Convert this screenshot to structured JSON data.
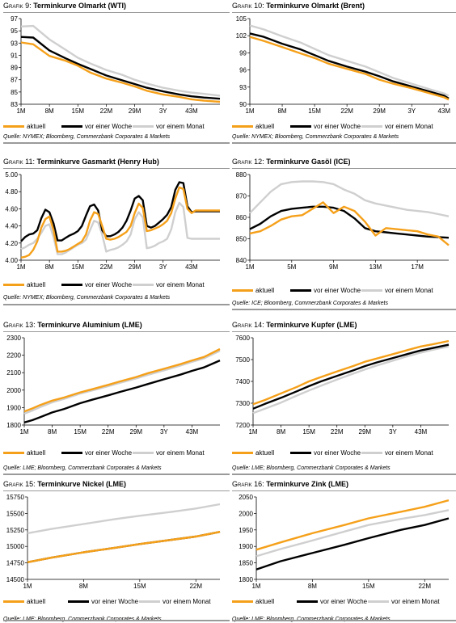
{
  "colors": {
    "aktuell": "#f5a01a",
    "woche": "#000000",
    "monat": "#cfcfcf",
    "dashed": "#f5a01a"
  },
  "legend": {
    "aktuell": "aktuell",
    "woche": "vor einer Woche",
    "monat": "vor einem Monat"
  },
  "panels": [
    {
      "pre": "Grafik 9: ",
      "title": "Terminkurve Olmarkt (WTI)",
      "source": "Quelle: NYMEX; Bloomberg, Commerzbank Corporates & Markets"
    },
    {
      "pre": "Grafik 10: ",
      "title": "Terminkurve Olmarkt (Brent)",
      "source": "Quelle: NYMEX; Bloomberg, Commerzbank Corporates & Markets"
    },
    {
      "pre": "Grafik 11: ",
      "title": "Terminkurve Gasmarkt (Henry Hub)",
      "source": "Quelle: NYMEX; Bloomberg, Commerzbank Corporates & Markets"
    },
    {
      "pre": "Grafik 12: ",
      "title": "Terminkurve Gasöl (ICE)",
      "source": "Quelle: ICE; Bloomberg, Commerzbank Corporates & Markets"
    },
    {
      "pre": "Grafik 13:  ",
      "title": "Terminkurve Aluminium (LME)",
      "source": "Quelle: LME; Bloomberg, Commerzbank Corporates & Markets"
    },
    {
      "pre": "Grafik 14: ",
      "title": "Terminkurve Kupfer (LME)",
      "source": "Quelle: LME; Bloomberg, Commerzbank Corporates & Markets"
    },
    {
      "pre": "Grafik 15: ",
      "title": "Terminkurve Nickel (LME)",
      "source": "Quelle: LME; Bloomberg, Commerzbank Corporates & Markets"
    },
    {
      "pre": "Grafik 16: ",
      "title": "Terminkurve Zink (LME)",
      "source": "Quelle: LME; Bloomberg, Commerzbank Corporates & Markets"
    }
  ],
  "chart_data": [
    {
      "type": "line",
      "title": "Terminkurve Olmarkt (WTI)",
      "x": [
        1,
        4,
        8,
        12,
        15,
        18,
        22,
        26,
        29,
        32,
        36,
        40,
        43,
        46,
        50
      ],
      "xticks": [
        {
          "at": 1,
          "label": "1M"
        },
        {
          "at": 8,
          "label": "8M"
        },
        {
          "at": 15,
          "label": "15M"
        },
        {
          "at": 22,
          "label": "22M"
        },
        {
          "at": 29,
          "label": "29M"
        },
        {
          "at": 36,
          "label": "3Y"
        },
        {
          "at": 43,
          "label": "43M"
        }
      ],
      "ylim": [
        83,
        97
      ],
      "yticks": [
        83,
        85,
        87,
        89,
        91,
        93,
        95,
        97
      ],
      "xrange": [
        1,
        50
      ],
      "series": [
        {
          "name": "aktuell",
          "values": [
            93.1,
            92.8,
            90.9,
            90.1,
            89.3,
            88.2,
            87.2,
            86.5,
            85.9,
            85.2,
            84.6,
            84.2,
            83.8,
            83.6,
            83.4
          ]
        },
        {
          "name": "vor einer Woche",
          "values": [
            94.0,
            93.9,
            91.8,
            90.5,
            89.6,
            88.8,
            87.7,
            86.9,
            86.3,
            85.7,
            85.1,
            84.6,
            84.3,
            84.1,
            83.9
          ]
        },
        {
          "name": "vor einem Monat",
          "values": [
            95.7,
            95.8,
            93.6,
            91.9,
            90.6,
            89.7,
            88.6,
            87.8,
            87.0,
            86.4,
            85.7,
            85.2,
            84.9,
            84.7,
            84.4
          ]
        }
      ]
    },
    {
      "type": "line",
      "title": "Terminkurve Olmarkt (Brent)",
      "x": [
        1,
        4,
        8,
        12,
        15,
        18,
        22,
        26,
        29,
        32,
        36,
        40,
        43,
        44
      ],
      "xticks": [
        {
          "at": 1,
          "label": "1M"
        },
        {
          "at": 8,
          "label": "8M"
        },
        {
          "at": 15,
          "label": "15M"
        },
        {
          "at": 22,
          "label": "22M"
        },
        {
          "at": 29,
          "label": "29M"
        },
        {
          "at": 36,
          "label": "3Y"
        },
        {
          "at": 43,
          "label": "43M"
        }
      ],
      "ylim": [
        90,
        105
      ],
      "yticks": [
        90,
        93,
        96,
        99,
        102,
        105
      ],
      "xrange": [
        1,
        44
      ],
      "series": [
        {
          "name": "aktuell",
          "values": [
            101.8,
            101.1,
            100.0,
            98.9,
            98.1,
            97.1,
            96.2,
            95.3,
            94.3,
            93.6,
            92.8,
            91.9,
            91.2,
            90.8
          ]
        },
        {
          "name": "vor einer Woche",
          "values": [
            102.4,
            101.8,
            100.6,
            99.6,
            98.6,
            97.6,
            96.6,
            95.7,
            94.9,
            94.0,
            93.1,
            92.2,
            91.5,
            91.0
          ]
        },
        {
          "name": "vor einem Monat",
          "values": [
            103.8,
            103.1,
            101.9,
            100.8,
            99.7,
            98.6,
            97.6,
            96.6,
            95.6,
            94.6,
            93.6,
            92.6,
            91.9,
            91.5
          ]
        }
      ]
    },
    {
      "type": "line",
      "title": "Terminkurve Gasmarkt (Henry Hub)",
      "x": [
        1,
        2,
        3,
        4,
        5,
        6,
        7,
        8,
        9,
        10,
        11,
        12,
        13,
        14,
        15,
        16,
        17,
        18,
        19,
        20,
        21,
        22,
        23,
        24,
        25,
        26,
        27,
        28,
        29,
        30,
        31,
        32,
        33,
        34,
        35,
        36,
        37,
        38,
        39,
        40,
        41,
        42,
        43,
        44,
        45,
        46,
        47,
        48,
        49,
        50
      ],
      "xticks": [
        {
          "at": 1,
          "label": "1M"
        },
        {
          "at": 8,
          "label": "8M"
        },
        {
          "at": 15,
          "label": "15M"
        },
        {
          "at": 22,
          "label": "22M"
        },
        {
          "at": 29,
          "label": "29M"
        },
        {
          "at": 36,
          "label": "3Y"
        },
        {
          "at": 43,
          "label": "43M"
        }
      ],
      "ylim": [
        4.0,
        5.0
      ],
      "yticks": [
        4.0,
        4.2,
        4.4,
        4.6,
        4.8,
        5.0
      ],
      "xrange": [
        1,
        50
      ],
      "ydecimals": 2,
      "series": [
        {
          "name": "aktuell",
          "values": [
            4.03,
            4.04,
            4.06,
            4.12,
            4.22,
            4.38,
            4.48,
            4.51,
            4.35,
            4.1,
            4.1,
            4.11,
            4.13,
            4.16,
            4.19,
            4.22,
            4.3,
            4.46,
            4.56,
            4.54,
            4.4,
            4.25,
            4.24,
            4.25,
            4.27,
            4.3,
            4.33,
            4.4,
            4.55,
            4.66,
            4.61,
            4.34,
            4.35,
            4.37,
            4.39,
            4.42,
            4.46,
            4.55,
            4.72,
            4.85,
            4.83,
            4.6,
            4.55,
            4.58,
            4.58,
            4.58,
            4.58,
            4.58,
            4.58,
            4.58
          ]
        },
        {
          "name": "vor einer Woche",
          "values": [
            4.22,
            4.27,
            4.3,
            4.31,
            4.35,
            4.49,
            4.59,
            4.56,
            4.43,
            4.23,
            4.23,
            4.26,
            4.29,
            4.31,
            4.34,
            4.4,
            4.52,
            4.63,
            4.65,
            4.58,
            4.35,
            4.28,
            4.28,
            4.3,
            4.33,
            4.38,
            4.46,
            4.58,
            4.72,
            4.75,
            4.7,
            4.4,
            4.38,
            4.4,
            4.44,
            4.48,
            4.53,
            4.62,
            4.82,
            4.91,
            4.9,
            4.63,
            4.56,
            4.57,
            4.57,
            4.57,
            4.57,
            4.57,
            4.57,
            4.57
          ]
        },
        {
          "name": "vor einem Monat",
          "values": [
            4.13,
            4.15,
            4.18,
            4.2,
            4.25,
            4.32,
            4.4,
            4.42,
            4.27,
            4.07,
            4.07,
            4.09,
            4.12,
            4.15,
            4.18,
            4.2,
            4.24,
            4.35,
            4.46,
            4.44,
            4.3,
            4.1,
            4.12,
            4.13,
            4.15,
            4.18,
            4.22,
            4.3,
            4.48,
            4.56,
            4.5,
            4.14,
            4.15,
            4.17,
            4.2,
            4.22,
            4.25,
            4.36,
            4.56,
            4.67,
            4.62,
            4.26,
            4.25,
            4.25,
            4.25,
            4.25,
            4.25,
            4.25,
            4.25,
            4.25
          ]
        }
      ]
    },
    {
      "type": "line",
      "title": "Terminkurve Gasöl (ICE)",
      "x": [
        1,
        2,
        3,
        4,
        5,
        6,
        7,
        8,
        9,
        10,
        11,
        12,
        13,
        14,
        15,
        16,
        17,
        18,
        19,
        20
      ],
      "xticks": [
        {
          "at": 1,
          "label": "1M"
        },
        {
          "at": 5,
          "label": "5M"
        },
        {
          "at": 9,
          "label": "9M"
        },
        {
          "at": 13,
          "label": "13M"
        },
        {
          "at": 17,
          "label": "17M"
        }
      ],
      "ylim": [
        840,
        880
      ],
      "yticks": [
        840,
        850,
        860,
        870,
        880
      ],
      "xrange": [
        1,
        20
      ],
      "series": [
        {
          "name": "aktuell",
          "values": [
            852.5,
            853.5,
            856,
            859,
            860.5,
            861,
            864,
            867,
            862,
            865,
            863,
            858,
            851.5,
            855,
            854.5,
            854,
            853.5,
            852,
            851,
            847
          ]
        },
        {
          "name": "vor einer Woche",
          "values": [
            854.5,
            857,
            860.5,
            863,
            864,
            864.5,
            865,
            865,
            864.5,
            863,
            859.5,
            855,
            853.5,
            853,
            852.5,
            852,
            851.5,
            851,
            850.8,
            850.5
          ]
        },
        {
          "name": "vor einem Monat",
          "values": [
            862,
            867,
            872,
            875.5,
            876.5,
            876.8,
            876.8,
            876.5,
            875.5,
            873,
            871,
            868,
            866.5,
            865.5,
            864.5,
            863.5,
            863,
            862.5,
            861.5,
            860.5
          ]
        }
      ]
    },
    {
      "type": "line",
      "title": "Terminkurve Aluminium (LME)",
      "x": [
        1,
        3,
        5,
        8,
        11,
        15,
        18,
        22,
        25,
        29,
        32,
        36,
        40,
        43,
        46,
        50
      ],
      "xticks": [
        {
          "at": 1,
          "label": "1M"
        },
        {
          "at": 8,
          "label": "8M"
        },
        {
          "at": 15,
          "label": "15M"
        },
        {
          "at": 22,
          "label": "22M"
        },
        {
          "at": 29,
          "label": "29M"
        },
        {
          "at": 36,
          "label": "3Y"
        },
        {
          "at": 43,
          "label": "43M"
        }
      ],
      "ylim": [
        1800,
        2300
      ],
      "yticks": [
        1800,
        1900,
        2000,
        2100,
        2200,
        2300
      ],
      "xrange": [
        1,
        50
      ],
      "series": [
        {
          "name": "aktuell",
          "values": [
            1878,
            1895,
            1915,
            1940,
            1958,
            1987,
            2005,
            2030,
            2050,
            2075,
            2097,
            2122,
            2148,
            2170,
            2190,
            2235
          ]
        },
        {
          "name": "vor einer Woche",
          "values": [
            1815,
            1828,
            1845,
            1872,
            1892,
            1925,
            1945,
            1970,
            1990,
            2015,
            2035,
            2062,
            2088,
            2110,
            2130,
            2170
          ]
        },
        {
          "name": "vor einem Monat",
          "values": [
            1865,
            1883,
            1903,
            1930,
            1950,
            1980,
            1998,
            2022,
            2042,
            2067,
            2088,
            2113,
            2140,
            2162,
            2182,
            2225
          ]
        }
      ]
    },
    {
      "type": "line",
      "title": "Terminkurve Kupfer (LME)",
      "x": [
        1,
        4,
        8,
        12,
        15,
        18,
        22,
        26,
        29,
        32,
        36,
        40,
        43,
        46,
        50
      ],
      "xticks": [
        {
          "at": 1,
          "label": "1M"
        },
        {
          "at": 8,
          "label": "8M"
        },
        {
          "at": 15,
          "label": "15M"
        },
        {
          "at": 22,
          "label": "22M"
        },
        {
          "at": 29,
          "label": "29M"
        },
        {
          "at": 36,
          "label": "3Y"
        },
        {
          "at": 43,
          "label": "43M"
        }
      ],
      "ylim": [
        7200,
        7600
      ],
      "yticks": [
        7200,
        7300,
        7400,
        7500,
        7600
      ],
      "xrange": [
        1,
        50
      ],
      "series": [
        {
          "name": "aktuell",
          "values": [
            7295,
            7315,
            7345,
            7375,
            7400,
            7420,
            7445,
            7470,
            7490,
            7505,
            7525,
            7545,
            7560,
            7570,
            7585
          ]
        },
        {
          "name": "vor einer Woche",
          "values": [
            7275,
            7297,
            7325,
            7355,
            7378,
            7400,
            7425,
            7450,
            7470,
            7487,
            7507,
            7527,
            7542,
            7553,
            7568
          ]
        },
        {
          "name": "vor einem Monat",
          "values": [
            7255,
            7275,
            7303,
            7335,
            7358,
            7380,
            7408,
            7435,
            7455,
            7473,
            7495,
            7517,
            7532,
            7545,
            7560
          ]
        }
      ]
    },
    {
      "type": "line",
      "title": "Terminkurve Nickel (LME)",
      "x": [
        1,
        4,
        8,
        12,
        15,
        19,
        22,
        25
      ],
      "xticks": [
        {
          "at": 1,
          "label": "1M"
        },
        {
          "at": 8,
          "label": "8M"
        },
        {
          "at": 15,
          "label": "15M"
        },
        {
          "at": 22,
          "label": "22M"
        }
      ],
      "ylim": [
        14500,
        15750
      ],
      "yticks": [
        14500,
        14750,
        15000,
        15250,
        15500,
        15750
      ],
      "xrange": [
        1,
        25
      ],
      "series": [
        {
          "name": "aktuell",
          "values": [
            14760,
            14830,
            14910,
            14980,
            15035,
            15100,
            15150,
            15220
          ]
        },
        {
          "name": "vor einer Woche",
          "values": [
            14760,
            14830,
            14910,
            14980,
            15035,
            15100,
            15150,
            15220
          ]
        },
        {
          "name": "vor einem Monat",
          "values": [
            15200,
            15265,
            15340,
            15415,
            15465,
            15525,
            15575,
            15640
          ]
        }
      ]
    },
    {
      "type": "line",
      "title": "Terminkurve Zink (LME)",
      "x": [
        1,
        4,
        8,
        12,
        15,
        19,
        22,
        25
      ],
      "xticks": [
        {
          "at": 1,
          "label": "1M"
        },
        {
          "at": 8,
          "label": "8M"
        },
        {
          "at": 15,
          "label": "15M"
        },
        {
          "at": 22,
          "label": "22M"
        }
      ],
      "ylim": [
        1800,
        2050
      ],
      "yticks": [
        1800,
        1850,
        1900,
        1950,
        2000,
        2050
      ],
      "xrange": [
        1,
        25
      ],
      "series": [
        {
          "name": "aktuell",
          "values": [
            1890,
            1912,
            1940,
            1965,
            1985,
            2005,
            2020,
            2040
          ]
        },
        {
          "name": "vor einer Woche",
          "values": [
            1830,
            1855,
            1880,
            1905,
            1925,
            1950,
            1965,
            1985
          ]
        },
        {
          "name": "vor einem Monat",
          "values": [
            1870,
            1892,
            1918,
            1945,
            1965,
            1983,
            1995,
            2010
          ]
        }
      ]
    }
  ]
}
